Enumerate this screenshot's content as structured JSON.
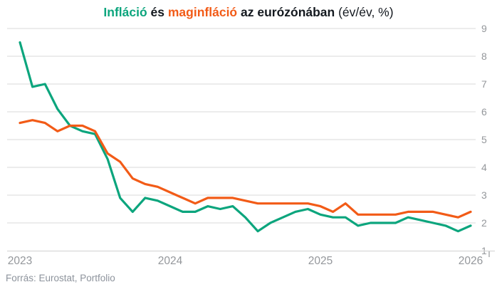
{
  "title": {
    "part_inflacio": "Infláció",
    "part_es": " és ",
    "part_maginflacio": "maginfláció",
    "part_zone": " az eurózónában",
    "part_unit": " (év/év, %)"
  },
  "source": "Forrás: Eurostat, Portfolio",
  "colors": {
    "inflation_green": "#0ca57d",
    "core_orange": "#f25b17",
    "title_dark": "#14191f",
    "grid_gray": "#d8d8d8",
    "axis_label_gray": "#94979b",
    "source_gray": "#8d939c"
  },
  "chart_data": {
    "type": "line",
    "title": "Infláció és maginfláció az eurózónában (év/év, %)",
    "xlabel": "",
    "ylabel": "",
    "grid": true,
    "legend_position": "in-title-colored-words",
    "ylim": [
      1,
      9
    ],
    "yticks": [
      1,
      2,
      3,
      4,
      5,
      6,
      7,
      8,
      9
    ],
    "yticks_side": "right",
    "xticks": [
      "2023",
      "2024",
      "2025",
      "2026"
    ],
    "x": [
      "2023-02",
      "2023-03",
      "2023-04",
      "2023-05",
      "2023-06",
      "2023-07",
      "2023-08",
      "2023-09",
      "2023-10",
      "2023-11",
      "2023-12",
      "2024-01",
      "2024-02",
      "2024-03",
      "2024-04",
      "2024-05",
      "2024-06",
      "2024-07",
      "2024-08",
      "2024-09",
      "2024-10",
      "2024-11",
      "2024-12",
      "2025-01",
      "2025-02",
      "2025-03",
      "2025-04",
      "2025-05",
      "2025-06",
      "2025-07",
      "2025-08",
      "2025-09",
      "2025-10",
      "2025-11",
      "2025-12",
      "2026-01",
      "2026-02"
    ],
    "series": [
      {
        "name": "Infláció",
        "color_key": "inflation_green",
        "values": [
          8.5,
          6.9,
          7.0,
          6.1,
          5.5,
          5.3,
          5.2,
          4.3,
          2.9,
          2.4,
          2.9,
          2.8,
          2.6,
          2.4,
          2.4,
          2.6,
          2.5,
          2.6,
          2.2,
          1.7,
          2.0,
          2.2,
          2.4,
          2.5,
          2.3,
          2.2,
          2.2,
          1.9,
          2.0,
          2.0,
          2.0,
          2.2,
          2.1,
          2.0,
          1.9,
          1.7,
          1.9
        ]
      },
      {
        "name": "maginfláció",
        "color_key": "core_orange",
        "values": [
          5.6,
          5.7,
          5.6,
          5.3,
          5.5,
          5.5,
          5.3,
          4.5,
          4.2,
          3.6,
          3.4,
          3.3,
          3.1,
          2.9,
          2.7,
          2.9,
          2.9,
          2.9,
          2.8,
          2.7,
          2.7,
          2.7,
          2.7,
          2.7,
          2.6,
          2.4,
          2.7,
          2.3,
          2.3,
          2.3,
          2.3,
          2.4,
          2.4,
          2.4,
          2.3,
          2.2,
          2.4
        ]
      }
    ]
  }
}
